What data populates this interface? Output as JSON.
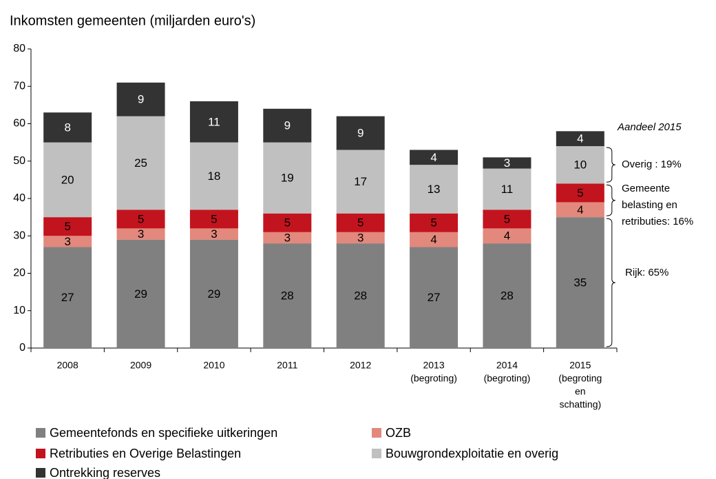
{
  "chart_data": {
    "type": "stacked_bar",
    "title": "Inkomsten gemeenten (miljarden euro's)",
    "categories": [
      [
        "2008"
      ],
      [
        "2009"
      ],
      [
        "2010"
      ],
      [
        "2011"
      ],
      [
        "2012"
      ],
      [
        "2013",
        "(begroting)"
      ],
      [
        "2014",
        "(begroting)"
      ],
      [
        "2015",
        "(begroting",
        "en",
        "schatting)"
      ]
    ],
    "series": [
      {
        "name": "Gemeentefonds en specifieke uitkeringen",
        "color": "#808080",
        "label_color": "#000000",
        "values": [
          27,
          29,
          29,
          28,
          28,
          27,
          28,
          35
        ]
      },
      {
        "name": "OZB",
        "color": "#e3887c",
        "label_color": "#000000",
        "values": [
          3,
          3,
          3,
          3,
          3,
          4,
          4,
          4
        ]
      },
      {
        "name": "Retributies en Overige Belastingen",
        "color": "#c2141e",
        "label_color": "#000000",
        "values": [
          5,
          5,
          5,
          5,
          5,
          5,
          5,
          5
        ]
      },
      {
        "name": "Bouwgrondexploitatie en overig",
        "color": "#c0c0c0",
        "label_color": "#000000",
        "values": [
          20,
          25,
          18,
          19,
          17,
          13,
          11,
          10
        ]
      },
      {
        "name": "Ontrekking reserves",
        "color": "#333333",
        "label_color": "#ffffff",
        "values": [
          8,
          9,
          11,
          9,
          9,
          4,
          3,
          4
        ]
      }
    ],
    "ylim": [
      0,
      80
    ],
    "yticks": [
      0,
      10,
      20,
      30,
      40,
      50,
      60,
      70,
      80
    ],
    "annotations": {
      "heading": "Aandeel 2015",
      "overig": "Overig : 19%",
      "gemeente": [
        "Gemeente",
        "belasting en",
        "retributies: 16%"
      ],
      "rijk": "Rijk: 65%"
    }
  }
}
